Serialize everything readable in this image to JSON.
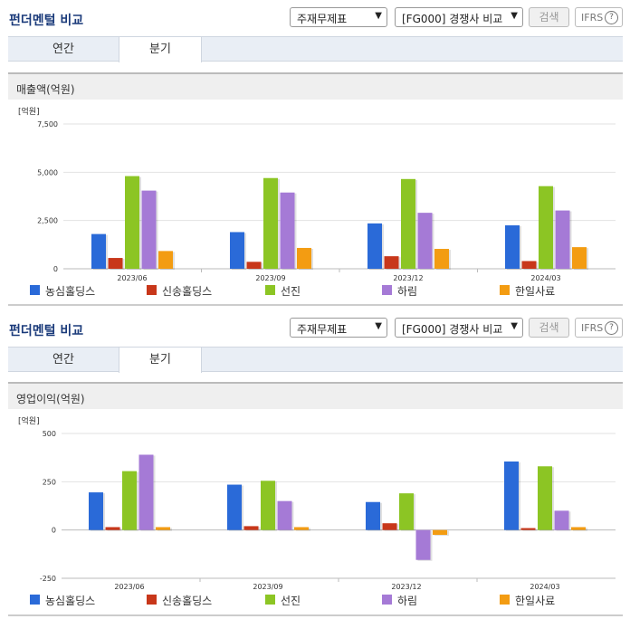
{
  "panels": [
    {
      "title": "펀더멘털 비교",
      "select1": "주재무제표",
      "select2": "[FG000] 경쟁사 비교",
      "search_label": "검색",
      "ifrs_label": "IFRS",
      "ifrs_help": "?",
      "tabs": [
        "연간",
        "분기"
      ],
      "active_tab": "분기",
      "chart_title": "매출액(억원)"
    },
    {
      "title": "펀더멘털 비교",
      "select1": "주재무제표",
      "select2": "[FG000] 경쟁사 비교",
      "search_label": "검색",
      "ifrs_label": "IFRS",
      "ifrs_help": "?",
      "tabs": [
        "연간",
        "분기"
      ],
      "active_tab": "분기",
      "chart_title": "영업이익(억원)"
    }
  ],
  "chart_data": [
    {
      "type": "bar",
      "title": "매출액(억원)",
      "unit_label": "[억원]",
      "categories": [
        "2023/06",
        "2023/09",
        "2023/12",
        "2024/03"
      ],
      "ylim": [
        0,
        7500
      ],
      "yticks": [
        "0",
        "2,500",
        "5,000",
        "7,500"
      ],
      "ytick_values": [
        0,
        2500,
        5000,
        7500
      ],
      "grid": true,
      "legend_position": "bottom",
      "series": [
        {
          "name": "농심홀딩스",
          "color": "#2a6ad8",
          "values": [
            1800,
            1900,
            2350,
            2250
          ]
        },
        {
          "name": "신송홀딩스",
          "color": "#c8371a",
          "values": [
            560,
            360,
            650,
            400
          ]
        },
        {
          "name": "선진",
          "color": "#8cc524",
          "values": [
            4800,
            4700,
            4650,
            4280
          ]
        },
        {
          "name": "하림",
          "color": "#a57ad6",
          "values": [
            4050,
            3950,
            2900,
            3020
          ]
        },
        {
          "name": "한일사료",
          "color": "#f39c12",
          "values": [
            920,
            1080,
            1030,
            1120
          ]
        }
      ]
    },
    {
      "type": "bar",
      "title": "영업이익(억원)",
      "unit_label": "[억원]",
      "categories": [
        "2023/06",
        "2023/09",
        "2023/12",
        "2024/03"
      ],
      "ylim": [
        -250,
        500
      ],
      "yticks": [
        "-250",
        "0",
        "250",
        "500"
      ],
      "ytick_values": [
        -250,
        0,
        250,
        500
      ],
      "grid": true,
      "legend_position": "bottom",
      "series": [
        {
          "name": "농심홀딩스",
          "color": "#2a6ad8",
          "values": [
            195,
            235,
            145,
            355
          ]
        },
        {
          "name": "신송홀딩스",
          "color": "#c8371a",
          "values": [
            15,
            20,
            35,
            10
          ]
        },
        {
          "name": "선진",
          "color": "#8cc524",
          "values": [
            305,
            255,
            190,
            330
          ]
        },
        {
          "name": "하림",
          "color": "#a57ad6",
          "values": [
            390,
            150,
            -155,
            100
          ]
        },
        {
          "name": "한일사료",
          "color": "#f39c12",
          "values": [
            15,
            15,
            -25,
            15
          ]
        }
      ]
    }
  ]
}
